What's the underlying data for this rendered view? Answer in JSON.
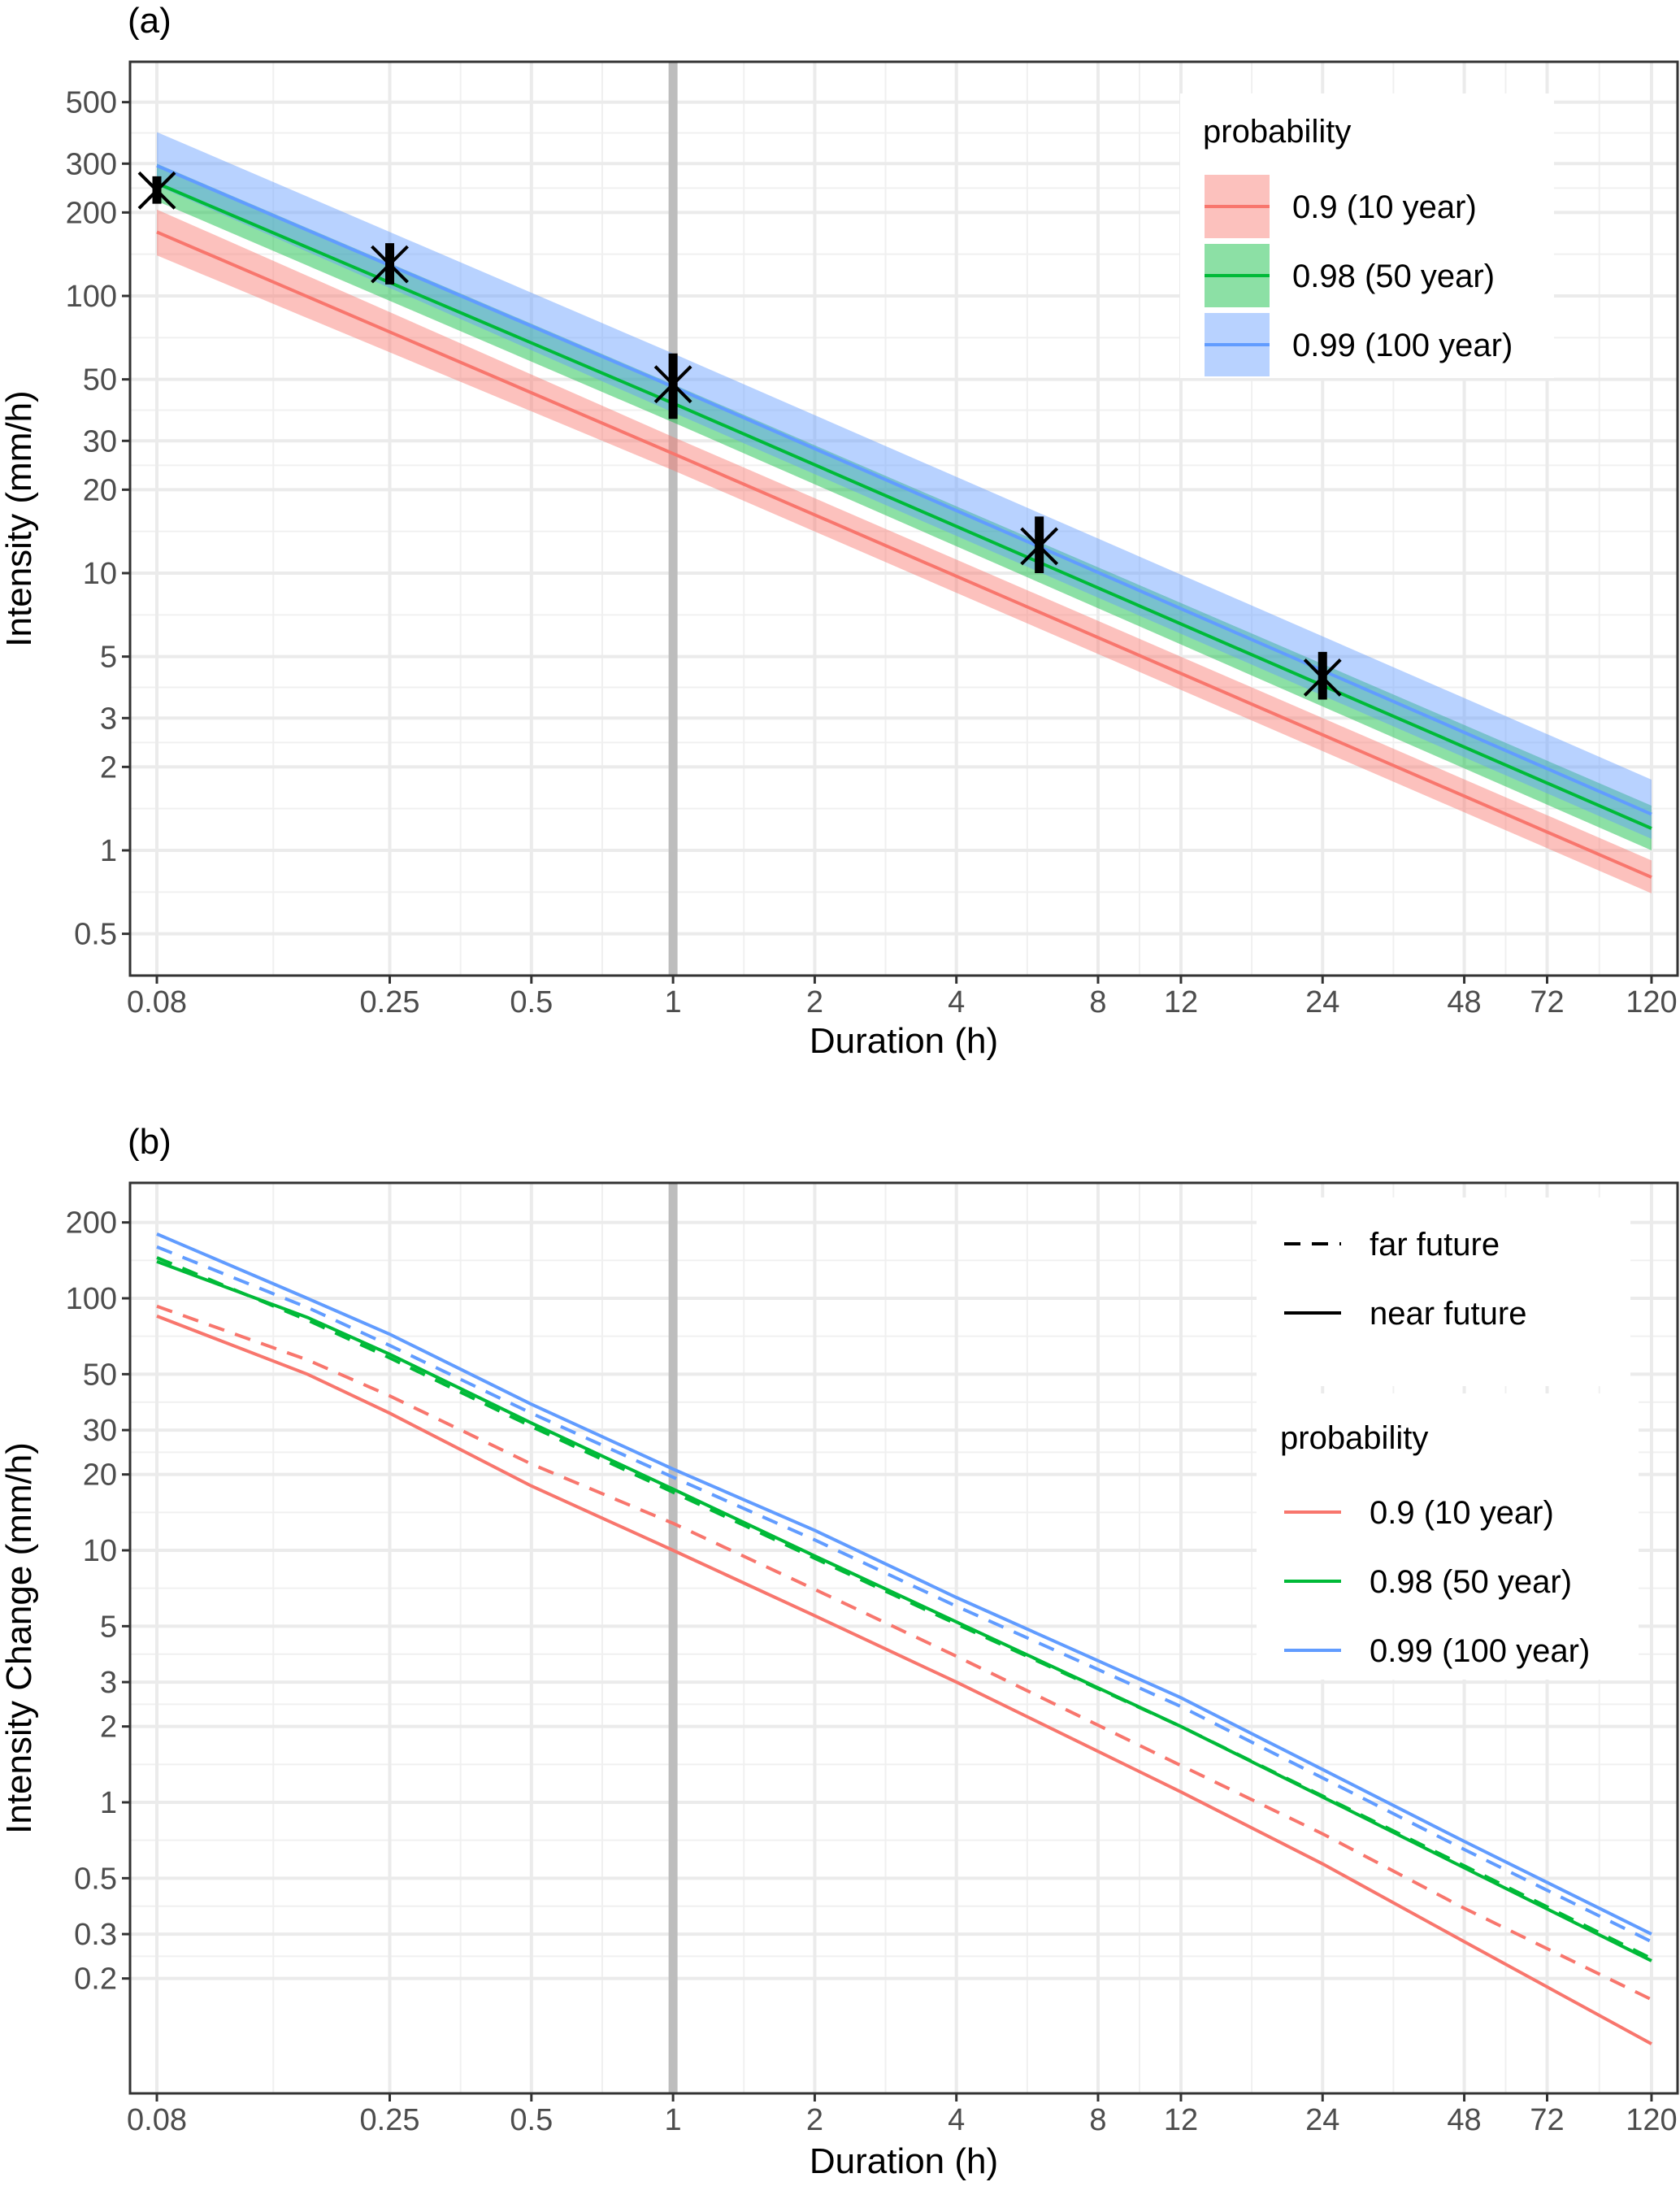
{
  "chart_data": [
    {
      "panel_label": "(a)",
      "type": "line",
      "xlabel": "Duration (h)",
      "ylabel": "Intensity (mm/h)",
      "x_scale": "log10",
      "y_scale": "log10",
      "xlim": [
        0.08,
        120
      ],
      "ylim": [
        0.4,
        700
      ],
      "x_ticks": [
        0.08,
        0.25,
        0.5,
        1,
        2,
        4,
        8,
        12,
        24,
        48,
        72,
        120
      ],
      "x_tick_labels": [
        "0.08",
        "0.25",
        "0.5",
        "1",
        "2",
        "4",
        "8",
        "12",
        "24",
        "48",
        "72",
        "120"
      ],
      "y_ticks": [
        0.5,
        1,
        2,
        3,
        5,
        10,
        20,
        30,
        50,
        100,
        200,
        300,
        500
      ],
      "y_tick_labels": [
        "0.5",
        "1",
        "2",
        "3",
        "5",
        "10",
        "20",
        "30",
        "50",
        "100",
        "200",
        "300",
        "500"
      ],
      "grid": true,
      "reference_vline_x": 1,
      "legend": {
        "title": "probability",
        "placement": "top-right"
      },
      "series": [
        {
          "name": "0.9 (10 year)",
          "color": "#F8766D",
          "x": [
            0.08,
            1,
            120
          ],
          "values": [
            170,
            27,
            0.8
          ],
          "lower": [
            140,
            23.5,
            0.7
          ],
          "upper": [
            205,
            31,
            0.92
          ]
        },
        {
          "name": "0.98 (50 year)",
          "color": "#00BA38",
          "x": [
            0.08,
            1,
            120
          ],
          "values": [
            255,
            41,
            1.2
          ],
          "lower": [
            220,
            35,
            1.0
          ],
          "upper": [
            300,
            48,
            1.45
          ]
        },
        {
          "name": "0.99 (100 year)",
          "color": "#619CFF",
          "x": [
            0.08,
            1,
            120
          ],
          "values": [
            295,
            47,
            1.35
          ],
          "lower": [
            250,
            38,
            1.1
          ],
          "upper": [
            390,
            62,
            1.8
          ]
        }
      ],
      "observations": {
        "marker": "x-with-errorbar",
        "color": "#000000",
        "x": [
          0.08,
          0.25,
          1,
          6,
          24
        ],
        "values": [
          240,
          130,
          48,
          12.5,
          4.2
        ],
        "lower": [
          215,
          110,
          36,
          10,
          3.5
        ],
        "upper": [
          270,
          155,
          62,
          16,
          5.2
        ]
      }
    },
    {
      "panel_label": "(b)",
      "type": "line",
      "xlabel": "Duration (h)",
      "ylabel": "Intensity Change (mm/h)",
      "x_scale": "log10",
      "y_scale": "log10",
      "xlim": [
        0.08,
        120
      ],
      "ylim": [
        0.09,
        280
      ],
      "x_ticks": [
        0.08,
        0.25,
        0.5,
        1,
        2,
        4,
        8,
        12,
        24,
        48,
        72,
        120
      ],
      "x_tick_labels": [
        "0.08",
        "0.25",
        "0.5",
        "1",
        "2",
        "4",
        "8",
        "12",
        "24",
        "48",
        "72",
        "120"
      ],
      "y_ticks": [
        0.2,
        0.3,
        0.5,
        1,
        2,
        3,
        5,
        10,
        20,
        30,
        50,
        100,
        200
      ],
      "y_tick_labels": [
        "0.2",
        "0.3",
        "0.5",
        "1",
        "2",
        "3",
        "5",
        "10",
        "20",
        "30",
        "50",
        "100",
        "200"
      ],
      "grid": true,
      "reference_vline_x": 1,
      "linetype_legend": {
        "placement": "top-right",
        "entries": [
          {
            "label": "far future",
            "dash": "dashed"
          },
          {
            "label": "near future",
            "dash": "solid"
          }
        ]
      },
      "legend": {
        "title": "probability",
        "placement": "right",
        "entries": [
          {
            "label": "0.9 (10 year)",
            "color": "#F8766D"
          },
          {
            "label": "0.98 (50 year)",
            "color": "#00BA38"
          },
          {
            "label": "0.99 (100 year)",
            "color": "#619CFF"
          }
        ]
      },
      "x": [
        0.08,
        0.167,
        0.25,
        0.5,
        1,
        2,
        4,
        12,
        24,
        48,
        120
      ],
      "series": [
        {
          "probability": "0.9 (10 year)",
          "period": "near future",
          "color": "#F8766D",
          "dash": "solid",
          "values": [
            85,
            50,
            35,
            18,
            10,
            5.5,
            3,
            1.1,
            0.57,
            0.28,
            0.11
          ]
        },
        {
          "probability": "0.9 (10 year)",
          "period": "far future",
          "color": "#F8766D",
          "dash": "dashed",
          "values": [
            93,
            57,
            41,
            22,
            12.8,
            7,
            3.8,
            1.4,
            0.75,
            0.38,
            0.165
          ]
        },
        {
          "probability": "0.98 (50 year)",
          "period": "near future",
          "color": "#00BA38",
          "dash": "solid",
          "values": [
            140,
            84,
            60,
            32,
            17.5,
            9.5,
            5.2,
            2.0,
            1.05,
            0.55,
            0.235
          ]
        },
        {
          "probability": "0.98 (50 year)",
          "period": "far future",
          "color": "#00BA38",
          "dash": "dashed",
          "values": [
            145,
            82,
            58,
            31,
            17,
            9.3,
            5.1,
            2.0,
            1.06,
            0.56,
            0.24
          ]
        },
        {
          "probability": "0.99 (100 year)",
          "period": "near future",
          "color": "#619CFF",
          "dash": "solid",
          "values": [
            180,
            100,
            72,
            38,
            21,
            12,
            6.5,
            2.6,
            1.35,
            0.7,
            0.3
          ]
        },
        {
          "probability": "0.99 (100 year)",
          "period": "far future",
          "color": "#619CFF",
          "dash": "dashed",
          "values": [
            160,
            92,
            65,
            35,
            19.5,
            11,
            6,
            2.4,
            1.25,
            0.65,
            0.28
          ]
        }
      ]
    }
  ]
}
